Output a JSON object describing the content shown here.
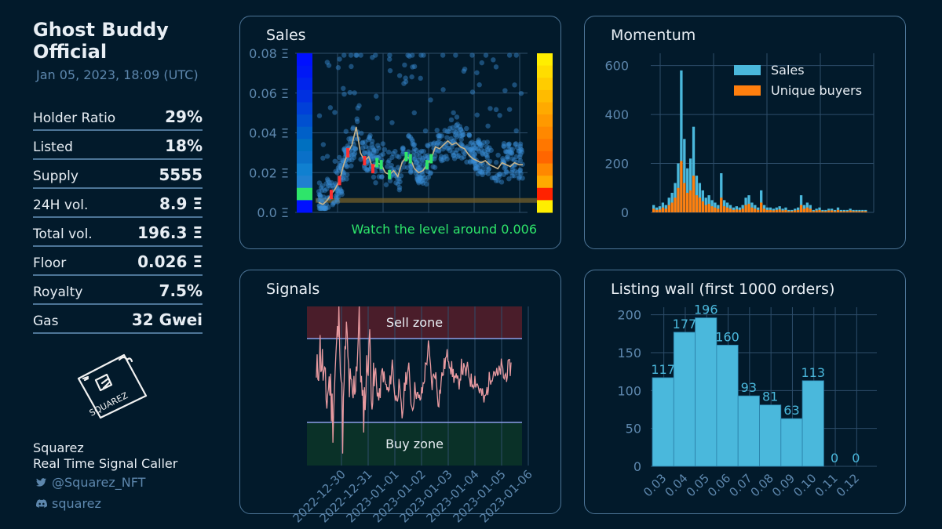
{
  "collection": {
    "title_line1": "Ghost Buddy",
    "title_line2": "Official",
    "date": "Jan 05, 2023, 18:09 (UTC)"
  },
  "stats": [
    {
      "label": "Holder Ratio",
      "value": "29%"
    },
    {
      "label": "Listed",
      "value": "18%"
    },
    {
      "label": "Supply",
      "value": "5555"
    },
    {
      "label": "24H vol.",
      "value": "8.9 Ξ"
    },
    {
      "label": "Total vol.",
      "value": "196.3 Ξ"
    },
    {
      "label": "Floor",
      "value": "0.026 Ξ"
    },
    {
      "label": "Royalty",
      "value": "7.5%"
    },
    {
      "label": "Gas",
      "value": "32 Gwei"
    }
  ],
  "brand": {
    "logo_text": "SQUAREZ",
    "name": "Squarez",
    "tagline": "Real Time Signal Caller",
    "twitter": "@Squarez_NFT",
    "discord": "squarez"
  },
  "panels": {
    "sales": {
      "title": "Sales",
      "note": "Watch the level around 0.006"
    },
    "momentum": {
      "title": "Momentum"
    },
    "signals": {
      "title": "Signals",
      "sell_zone": "Sell zone",
      "buy_zone": "Buy zone"
    },
    "listing_wall": {
      "title": "Listing wall (first 1000 orders)"
    }
  },
  "colors": {
    "bg": "#021a2b",
    "panel_border": "#4d7597",
    "sales": "#4ab8dc",
    "buyers": "#ff7f0e",
    "note": "#2ee56a"
  },
  "chart_data": [
    {
      "type": "scatter",
      "title": "Sales",
      "y_tick_labels": [
        "0.0 Ξ",
        "0.02 Ξ",
        "0.04 Ξ",
        "0.06 Ξ",
        "0.08 Ξ"
      ],
      "ylim": [
        0,
        0.08
      ],
      "support_level": 0.006,
      "trend": [
        0.005,
        0.004,
        0.006,
        0.009,
        0.012,
        0.016,
        0.024,
        0.03,
        0.034,
        0.043,
        0.03,
        0.026,
        0.028,
        0.022,
        0.025,
        0.024,
        0.02,
        0.019,
        0.021,
        0.018,
        0.025,
        0.028,
        0.027,
        0.022,
        0.02,
        0.021,
        0.024,
        0.027,
        0.033,
        0.032,
        0.034,
        0.036,
        0.034,
        0.035,
        0.033,
        0.032,
        0.029,
        0.027,
        0.026,
        0.025,
        0.026,
        0.024,
        0.023,
        0.022,
        0.025,
        0.024,
        0.023,
        0.025,
        0.024,
        0.024
      ]
    },
    {
      "type": "bar",
      "title": "Momentum",
      "y_tick_labels": [
        "0",
        "200",
        "400",
        "600"
      ],
      "ylim": [
        0,
        650
      ],
      "series": [
        {
          "name": "Sales",
          "values": [
            30,
            20,
            25,
            40,
            30,
            60,
            80,
            120,
            200,
            580,
            300,
            180,
            220,
            350,
            150,
            120,
            90,
            60,
            70,
            50,
            40,
            30,
            160,
            50,
            40,
            30,
            20,
            25,
            20,
            30,
            60,
            70,
            40,
            30,
            20,
            90,
            30,
            20,
            20,
            15,
            20,
            25,
            15,
            20,
            10,
            10,
            15,
            20,
            70,
            30,
            40,
            30,
            10,
            15,
            20,
            10,
            10,
            15,
            15,
            10,
            20,
            10,
            10,
            10,
            15,
            10,
            10,
            10,
            10,
            10
          ]
        },
        {
          "name": "Unique buyers",
          "values": [
            15,
            10,
            12,
            20,
            15,
            30,
            40,
            60,
            100,
            210,
            120,
            80,
            90,
            150,
            70,
            60,
            45,
            30,
            35,
            25,
            20,
            15,
            60,
            25,
            20,
            15,
            10,
            12,
            10,
            15,
            30,
            35,
            20,
            15,
            10,
            40,
            15,
            10,
            10,
            8,
            10,
            12,
            8,
            10,
            5,
            5,
            8,
            10,
            30,
            15,
            20,
            15,
            5,
            8,
            10,
            5,
            5,
            8,
            8,
            5,
            10,
            5,
            5,
            5,
            8,
            5,
            5,
            5,
            5,
            5
          ]
        }
      ]
    },
    {
      "type": "line",
      "title": "Signals",
      "x_tick_labels": [
        "2022-12-30",
        "2022-12-31",
        "2023-01-01",
        "2023-01-02",
        "2023-01-03",
        "2023-01-04",
        "2023-01-05",
        "2023-01-06"
      ],
      "values": [
        0.5,
        0.75,
        0.6,
        0.4,
        0.55,
        0.3,
        0.7,
        0.95,
        0.2,
        0.85,
        0.5,
        0.4,
        0.6,
        0.9,
        0.3,
        0.5,
        0.8,
        0.45,
        0.55,
        0.4,
        0.6,
        0.5,
        0.45,
        0.65,
        0.4,
        0.5,
        0.3,
        0.55,
        0.6,
        0.35,
        0.5,
        0.4,
        0.45,
        0.6,
        0.75,
        0.5,
        0.6,
        0.4,
        0.55,
        0.65,
        0.7,
        0.6,
        0.55,
        0.5,
        0.62,
        0.58,
        0.6,
        0.52,
        0.55,
        0.5,
        0.45,
        0.4,
        0.5,
        0.58,
        0.6,
        0.55,
        0.62,
        0.55,
        0.6,
        0.62
      ]
    },
    {
      "type": "bar",
      "title": "Listing wall (first 1000 orders)",
      "categories": [
        "0.03",
        "0.04",
        "0.05",
        "0.06",
        "0.07",
        "0.08",
        "0.09",
        "0.10",
        "0.11",
        "0.12"
      ],
      "values": [
        117,
        177,
        196,
        160,
        93,
        81,
        63,
        113,
        0,
        0
      ],
      "y_tick_labels": [
        "0",
        "50",
        "100",
        "150",
        "200"
      ],
      "ylim": [
        0,
        210
      ]
    }
  ]
}
